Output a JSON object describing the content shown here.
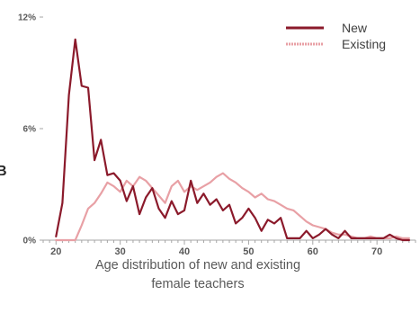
{
  "panel_letter": "B",
  "caption_line1": "Age distribution of new and existing",
  "caption_line2": "female teachers",
  "colors": {
    "new": "#8b1a2b",
    "existing": "#e8a0a5",
    "axis": "#a6a6a6"
  },
  "chart_data": {
    "type": "line",
    "title": "",
    "xlabel": "",
    "ylabel": "",
    "xlim": [
      18,
      76
    ],
    "ylim": [
      0,
      12
    ],
    "x_ticks": [
      20,
      30,
      40,
      50,
      60,
      70
    ],
    "y_ticks": [
      0,
      6,
      12
    ],
    "y_tick_labels": [
      "0%",
      "6%",
      "12%"
    ],
    "legend_position": "top-right",
    "series": [
      {
        "name": "New",
        "x": [
          20,
          21,
          22,
          23,
          24,
          25,
          26,
          27,
          28,
          29,
          30,
          31,
          32,
          33,
          34,
          35,
          36,
          37,
          38,
          39,
          40,
          41,
          42,
          43,
          44,
          45,
          46,
          47,
          48,
          49,
          50,
          51,
          52,
          53,
          54,
          55,
          56,
          57,
          58,
          59,
          60,
          61,
          62,
          63,
          64,
          65,
          66,
          67,
          68,
          69,
          70,
          71,
          72,
          73,
          74,
          75
        ],
        "values": [
          0.2,
          2.0,
          7.8,
          10.8,
          8.3,
          8.2,
          4.3,
          5.4,
          3.5,
          3.6,
          3.2,
          2.1,
          2.9,
          1.4,
          2.3,
          2.8,
          1.7,
          1.2,
          2.1,
          1.4,
          1.6,
          3.2,
          2.0,
          2.5,
          1.9,
          2.2,
          1.6,
          1.9,
          0.9,
          1.2,
          1.7,
          1.2,
          0.5,
          1.1,
          0.9,
          1.2,
          0.1,
          0.1,
          0.1,
          0.5,
          0.1,
          0.3,
          0.6,
          0.3,
          0.1,
          0.5,
          0.1,
          0.1,
          0.1,
          0.1,
          0.1,
          0.1,
          0.3,
          0.1,
          0.0,
          0.0
        ]
      },
      {
        "name": "Existing",
        "x": [
          20,
          21,
          22,
          23,
          24,
          25,
          26,
          27,
          28,
          29,
          30,
          31,
          32,
          33,
          34,
          35,
          36,
          37,
          38,
          39,
          40,
          41,
          42,
          43,
          44,
          45,
          46,
          47,
          48,
          49,
          50,
          51,
          52,
          53,
          54,
          55,
          56,
          57,
          58,
          59,
          60,
          61,
          62,
          63,
          64,
          65,
          66,
          67,
          68,
          69,
          70,
          71,
          72,
          73,
          74,
          75
        ],
        "values": [
          0.0,
          0.0,
          0.0,
          0.0,
          0.8,
          1.7,
          2.0,
          2.5,
          3.1,
          2.9,
          2.6,
          3.2,
          2.9,
          3.4,
          3.2,
          2.8,
          2.4,
          2.0,
          2.9,
          3.2,
          2.6,
          2.9,
          2.7,
          2.9,
          3.1,
          3.4,
          3.6,
          3.3,
          3.1,
          2.8,
          2.6,
          2.3,
          2.5,
          2.2,
          2.1,
          1.9,
          1.7,
          1.6,
          1.3,
          1.0,
          0.8,
          0.7,
          0.6,
          0.4,
          0.3,
          0.3,
          0.2,
          0.1,
          0.1,
          0.2,
          0.1,
          0.1,
          0.1,
          0.2,
          0.1,
          0.1
        ]
      }
    ]
  }
}
